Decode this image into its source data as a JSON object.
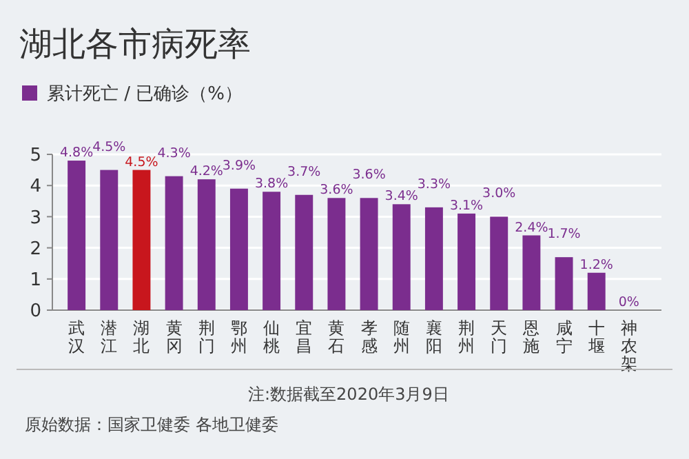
{
  "chart_data": {
    "type": "bar",
    "title": "湖北各市病死率",
    "categories": [
      "武汉",
      "潜江",
      "湖北",
      "黄冈",
      "荆门",
      "鄂州",
      "仙桃",
      "宜昌",
      "黄石",
      "孝感",
      "随州",
      "襄阳",
      "荆州",
      "天门",
      "恩施",
      "咸宁",
      "十堰",
      "神农架"
    ],
    "series": [
      {
        "name": "累计死亡 / 已确诊（%）",
        "color": "#7b2d8e",
        "colors": [
          "#7b2d8e",
          "#7b2d8e",
          "#c8161d",
          "#7b2d8e",
          "#7b2d8e",
          "#7b2d8e",
          "#7b2d8e",
          "#7b2d8e",
          "#7b2d8e",
          "#7b2d8e",
          "#7b2d8e",
          "#7b2d8e",
          "#7b2d8e",
          "#7b2d8e",
          "#7b2d8e",
          "#7b2d8e",
          "#7b2d8e",
          "#7b2d8e"
        ],
        "values": [
          4.8,
          4.5,
          4.5,
          4.3,
          4.2,
          3.9,
          3.8,
          3.7,
          3.6,
          3.6,
          3.4,
          3.3,
          3.1,
          3.0,
          2.4,
          1.7,
          1.2,
          0
        ],
        "value_labels": [
          "4.8%",
          "4.5%",
          "4.5%",
          "4.3%",
          "4.2%",
          "3.9%",
          "3.8%",
          "3.7%",
          "3.6%",
          "3.6%",
          "3.4%",
          "3.3%",
          "3.1%",
          "3.0%",
          "2.4%",
          "1.7%",
          "1.2%",
          "0%"
        ]
      }
    ],
    "ylim": [
      0,
      5
    ],
    "yticks": [
      0,
      1,
      2,
      3,
      4,
      5
    ],
    "grid": "y",
    "legend": "top left",
    "annotations": [
      "注:数据截至2020年3月9日",
      "原始数据：国家卫健委 各地卫健委"
    ]
  }
}
